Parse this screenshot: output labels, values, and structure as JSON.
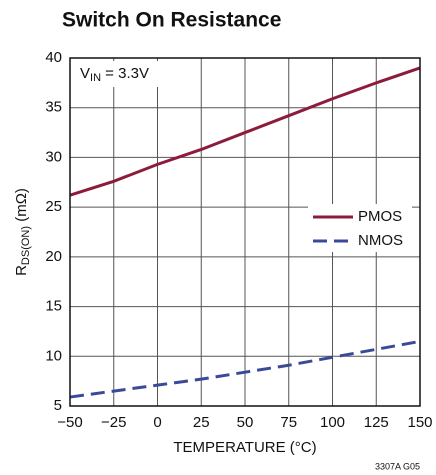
{
  "chart_data": {
    "type": "line",
    "title": "Switch On Resistance",
    "annotation": {
      "main": "V",
      "sub": "IN",
      "rest": " = 3.3V"
    },
    "xlabel": "TEMPERATURE (°C)",
    "ylabel": {
      "main": "R",
      "sub": "DS(ON)",
      "rest": " (mΩ)"
    },
    "footnote": "3307A G05",
    "x": [
      -50,
      -25,
      0,
      25,
      50,
      75,
      100,
      125,
      150
    ],
    "series": [
      {
        "name": "PMOS",
        "color": "#8c1b3c",
        "dash": false,
        "values": [
          26.2,
          27.6,
          29.3,
          30.8,
          32.5,
          34.2,
          35.9,
          37.5,
          39.0
        ]
      },
      {
        "name": "NMOS",
        "color": "#3b4a98",
        "dash": true,
        "values": [
          5.9,
          6.5,
          7.1,
          7.7,
          8.4,
          9.1,
          9.9,
          10.7,
          11.5
        ]
      }
    ],
    "xlim": [
      -50,
      150
    ],
    "xticks": [
      {
        "value": -50,
        "label": "−50"
      },
      {
        "value": -25,
        "label": "−25"
      },
      0,
      25,
      50,
      75,
      100,
      125,
      150
    ],
    "ylim": [
      5,
      40
    ],
    "yticks": [
      5,
      10,
      15,
      20,
      25,
      30,
      35,
      40
    ],
    "grid": true,
    "legend": "right"
  }
}
